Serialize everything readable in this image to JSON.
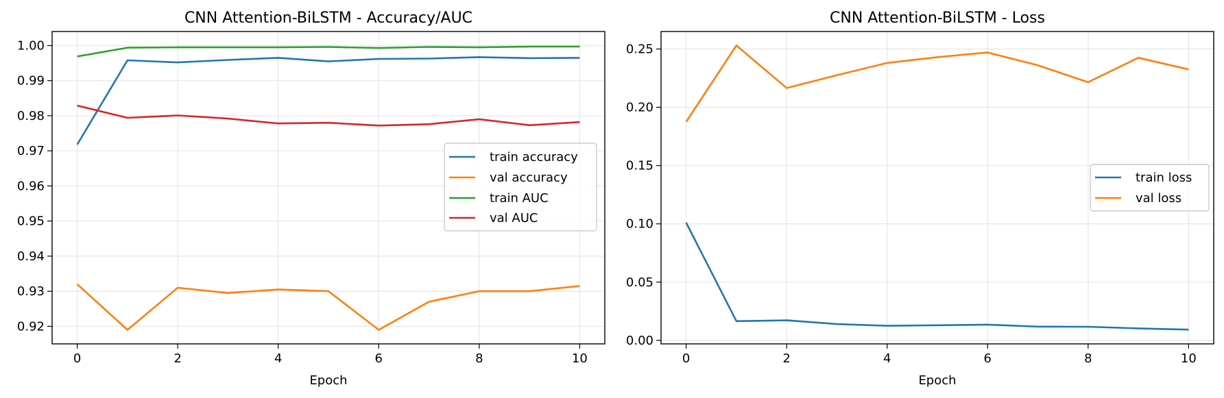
{
  "figure": {
    "charts": [
      {
        "id": "acc",
        "x_ticks": [
          "0",
          "2",
          "4",
          "6",
          "8",
          "10"
        ],
        "y_ticks": [
          "0.92",
          "0.93",
          "0.94",
          "0.95",
          "0.96",
          "0.97",
          "0.98",
          "0.99",
          "1.00"
        ]
      },
      {
        "id": "loss",
        "x_ticks": [
          "0",
          "2",
          "4",
          "6",
          "8",
          "10"
        ],
        "y_ticks": [
          "0.00",
          "0.05",
          "0.10",
          "0.15",
          "0.20",
          "0.25"
        ]
      }
    ]
  },
  "chart_data": [
    {
      "type": "line",
      "title": "CNN Attention-BiLSTM - Accuracy/AUC",
      "xlabel": "Epoch",
      "ylabel": "",
      "xlim": [
        -0.5,
        10.5
      ],
      "ylim": [
        0.915,
        1.004
      ],
      "x_ticks": [
        0,
        2,
        4,
        6,
        8,
        10
      ],
      "y_ticks": [
        0.92,
        0.93,
        0.94,
        0.95,
        0.96,
        0.97,
        0.98,
        0.99,
        1.0
      ],
      "grid": true,
      "legend_position": "center-right",
      "x": [
        0,
        1,
        2,
        3,
        4,
        5,
        6,
        7,
        8,
        9,
        10
      ],
      "series": [
        {
          "name": "train accuracy",
          "color": "#1f77b4",
          "values": [
            0.9718,
            0.9958,
            0.9952,
            0.9959,
            0.9965,
            0.9955,
            0.9962,
            0.9963,
            0.9967,
            0.9964,
            0.9965
          ]
        },
        {
          "name": "val accuracy",
          "color": "#ff7f0e",
          "values": [
            0.932,
            0.919,
            0.931,
            0.9295,
            0.9305,
            0.93,
            0.919,
            0.927,
            0.93,
            0.93,
            0.9315
          ]
        },
        {
          "name": "train AUC",
          "color": "#2ca02c",
          "values": [
            0.9969,
            0.9994,
            0.9995,
            0.9995,
            0.9995,
            0.9996,
            0.9993,
            0.9996,
            0.9995,
            0.9997,
            0.9997
          ]
        },
        {
          "name": "val AUC",
          "color": "#d62728",
          "values": [
            0.9829,
            0.9794,
            0.9801,
            0.9792,
            0.9778,
            0.978,
            0.9772,
            0.9776,
            0.979,
            0.9773,
            0.9782
          ]
        }
      ]
    },
    {
      "type": "line",
      "title": "CNN Attention-BiLSTM - Loss",
      "xlabel": "Epoch",
      "ylabel": "",
      "xlim": [
        -0.5,
        10.5
      ],
      "ylim": [
        -0.003,
        0.265
      ],
      "x_ticks": [
        0,
        2,
        4,
        6,
        8,
        10
      ],
      "y_ticks": [
        0.0,
        0.05,
        0.1,
        0.15,
        0.2,
        0.25
      ],
      "grid": true,
      "legend_position": "center-right",
      "x": [
        0,
        1,
        2,
        3,
        4,
        5,
        6,
        7,
        8,
        9,
        10
      ],
      "series": [
        {
          "name": "train loss",
          "color": "#1f77b4",
          "values": [
            0.101,
            0.0165,
            0.0172,
            0.014,
            0.0125,
            0.013,
            0.0135,
            0.0118,
            0.0117,
            0.0103,
            0.0092
          ]
        },
        {
          "name": "val loss",
          "color": "#ff7f0e",
          "values": [
            0.1875,
            0.253,
            0.2165,
            0.2275,
            0.238,
            0.243,
            0.247,
            0.236,
            0.2215,
            0.2425,
            0.2325
          ]
        }
      ]
    }
  ]
}
